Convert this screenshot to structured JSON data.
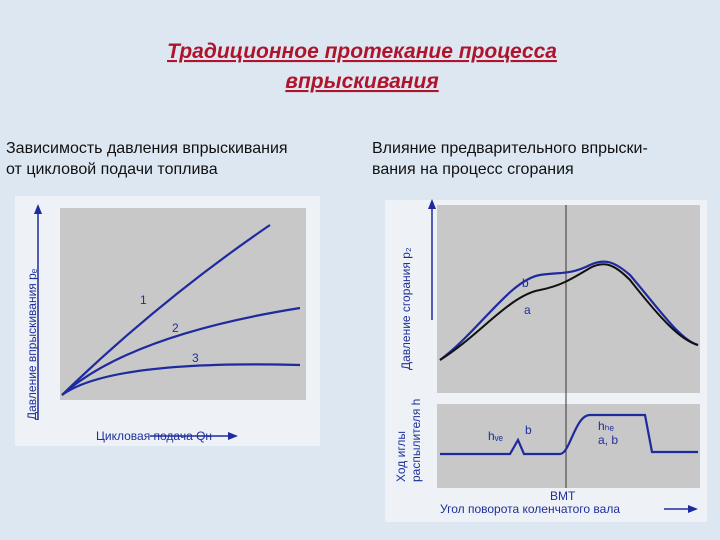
{
  "title": [
    "Традиционное протекание процесса",
    "впрыскивания"
  ],
  "left": {
    "caption": [
      "Зависимость давления впрыскивания",
      "от цикловой подачи топлива"
    ],
    "y_label": "Давление впрыскивания pₑ",
    "x_label": "Цикловая подача Qн",
    "curve_labels": [
      "1",
      "2",
      "3"
    ]
  },
  "right": {
    "caption": [
      "Влияние предварительного впрыски-",
      "вания на процесс сгорания"
    ],
    "top_y_label": "Давление сгорания p₂",
    "curve_labels": [
      "b",
      "a"
    ],
    "bottom_y_label": [
      "Ход иглы",
      "распылителя h"
    ],
    "bottom_labels": [
      "hᵥₑ",
      "b",
      "hₕₑ",
      "a, b"
    ],
    "tdc": "ВМТ",
    "x_label": "Угол поворота коленчатого вала"
  }
}
